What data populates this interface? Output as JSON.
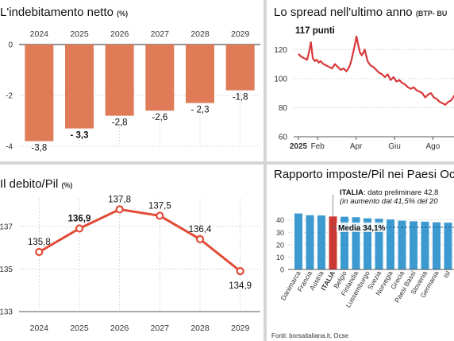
{
  "chart_data": [
    {
      "type": "bar",
      "title": "L'indebitamento netto",
      "unit": "(%)",
      "categories": [
        "2024",
        "2025",
        "2026",
        "2027",
        "2028",
        "2029"
      ],
      "values": [
        -3.8,
        -3.3,
        -2.8,
        -2.6,
        -2.3,
        -1.8
      ],
      "value_labels": [
        "-3,8",
        "- 3,3",
        "-2,8",
        "-2,6",
        "- 2,3",
        "-1,8"
      ],
      "bold_value_index": 1,
      "ylim": [
        -4,
        0
      ],
      "yticks": [
        0,
        -2,
        -4
      ],
      "ytick_labels": [
        "0",
        "-2",
        "-4"
      ],
      "bar_color": "#e07b58",
      "grid": true
    },
    {
      "type": "line",
      "title": "Lo spread nell'ultimo anno",
      "unit": "(BTP- BU",
      "annotation": "117 punti",
      "ylim": [
        60,
        130
      ],
      "yticks": [
        60,
        80,
        100,
        120
      ],
      "ytick_labels": [
        "60",
        "80",
        "100",
        "120"
      ],
      "x_labels": [
        "2025",
        "Feb",
        "Apr",
        "Giu",
        "Ago"
      ],
      "x_label_positions": [
        0,
        1,
        3,
        5,
        7
      ],
      "x_label_bold": [
        true,
        false,
        false,
        false,
        false
      ],
      "x": [
        0,
        0.15,
        0.3,
        0.45,
        0.55,
        0.65,
        0.75,
        0.85,
        0.95,
        1.05,
        1.15,
        1.3,
        1.45,
        1.6,
        1.75,
        1.9,
        2.05,
        2.2,
        2.35,
        2.5,
        2.65,
        2.75,
        2.85,
        2.95,
        3.02,
        3.1,
        3.2,
        3.3,
        3.45,
        3.6,
        3.75,
        3.9,
        4.05,
        4.2,
        4.35,
        4.5,
        4.65,
        4.8,
        4.95,
        5.1,
        5.25,
        5.4,
        5.55,
        5.7,
        5.85,
        6.0,
        6.15,
        6.3,
        6.45,
        6.6,
        6.75,
        6.9,
        7.05,
        7.2,
        7.35,
        7.5,
        7.65,
        7.8,
        7.95,
        8.1,
        8.25,
        8.4
      ],
      "y": [
        117,
        115,
        114,
        113,
        118,
        125,
        114,
        112,
        113,
        111,
        112,
        110,
        109,
        108,
        107,
        110,
        108,
        106,
        107,
        105,
        108,
        112,
        118,
        124,
        129,
        124,
        118,
        116,
        120,
        112,
        109,
        108,
        106,
        104,
        103,
        101,
        103,
        99,
        101,
        98,
        99,
        97,
        96,
        94,
        93,
        94,
        92,
        91,
        90,
        87,
        89,
        90,
        87,
        86,
        84,
        83,
        82,
        84,
        85,
        88,
        91,
        94
      ],
      "line_color": "#d8383a",
      "grid": true
    },
    {
      "type": "line",
      "title": "Il debito/Pil",
      "unit": "(%)",
      "categories": [
        "2024",
        "2025",
        "2026",
        "2027",
        "2028",
        "2029"
      ],
      "values": [
        135.8,
        136.9,
        137.8,
        137.5,
        136.4,
        134.9
      ],
      "value_labels": [
        "135,8",
        "136,9",
        "137,8",
        "137,5",
        "136,4",
        "134,9"
      ],
      "bold_value_index": 1,
      "ylim": [
        133,
        138.3
      ],
      "yticks": [
        137,
        135,
        133
      ],
      "ytick_labels": [
        "137",
        "135",
        "133"
      ],
      "line_color": "#e14b36",
      "grid": true
    },
    {
      "type": "bar",
      "title": "Rapporto imposte/Pil nei Paesi Oc",
      "categories": [
        "Danimarca",
        "Francia",
        "Austria",
        "ITALIA",
        "Belgio",
        "Finlandia",
        "Lussemburgo",
        "Svezia",
        "Norvegia",
        "Grecia",
        "Paesi Bassi",
        "Slovenia",
        "Germania",
        "Isl"
      ],
      "values": [
        45.2,
        43.8,
        43.6,
        42.8,
        42.6,
        42.2,
        41.3,
        41.0,
        40.4,
        39.4,
        38.9,
        38.6,
        38.1,
        37.8
      ],
      "highlight_index": 3,
      "ylim": [
        0,
        47.5
      ],
      "yticks": [
        0,
        10,
        20,
        30,
        40
      ],
      "ytick_labels": [
        "0",
        "10",
        "20",
        "30",
        "40"
      ],
      "annotation_line1_bold": "ITALIA",
      "annotation_line1": ": dato preliminare 42,8",
      "annotation_line2": "(in aumento dal 41,5% del 20",
      "mean_label": "Media 34,1%",
      "mean_value": 34.1,
      "bar_color": "#3d9ad1",
      "highlight_color": "#cc3b33",
      "source": "Fonti: borsaitaliana.it, Ocse"
    }
  ]
}
